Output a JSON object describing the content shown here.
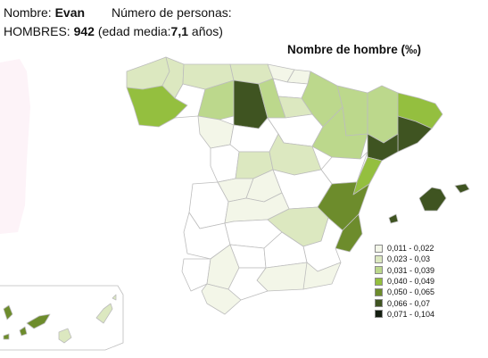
{
  "header": {
    "name_label": "Nombre:",
    "name_value": "Evan",
    "persons_label": "Número de personas:",
    "gender_label": "HOMBRES:",
    "count_value": "942",
    "avg_prefix": "(edad media:",
    "avg_value": "7,1",
    "avg_suffix": "años)"
  },
  "map": {
    "title": "Nombre de hombre (‰)"
  },
  "legend": {
    "items": [
      {
        "label": "0,011 - 0,022",
        "color": "#f3f6e8"
      },
      {
        "label": "0,023 - 0,03",
        "color": "#dce8c0"
      },
      {
        "label": "0,031 - 0,039",
        "color": "#bcd88c"
      },
      {
        "label": "0,040 - 0,049",
        "color": "#94bf3f"
      },
      {
        "label": "0,050 - 0,065",
        "color": "#6d8c2c"
      },
      {
        "label": "0,066 - 0,07",
        "color": "#3f5421"
      },
      {
        "label": "0,071 - 0,104",
        "color": "#141e10"
      }
    ]
  },
  "colors": {
    "empty": "#ffffff",
    "border": "#bdbdbd",
    "portugal": "#fdf3f8"
  }
}
